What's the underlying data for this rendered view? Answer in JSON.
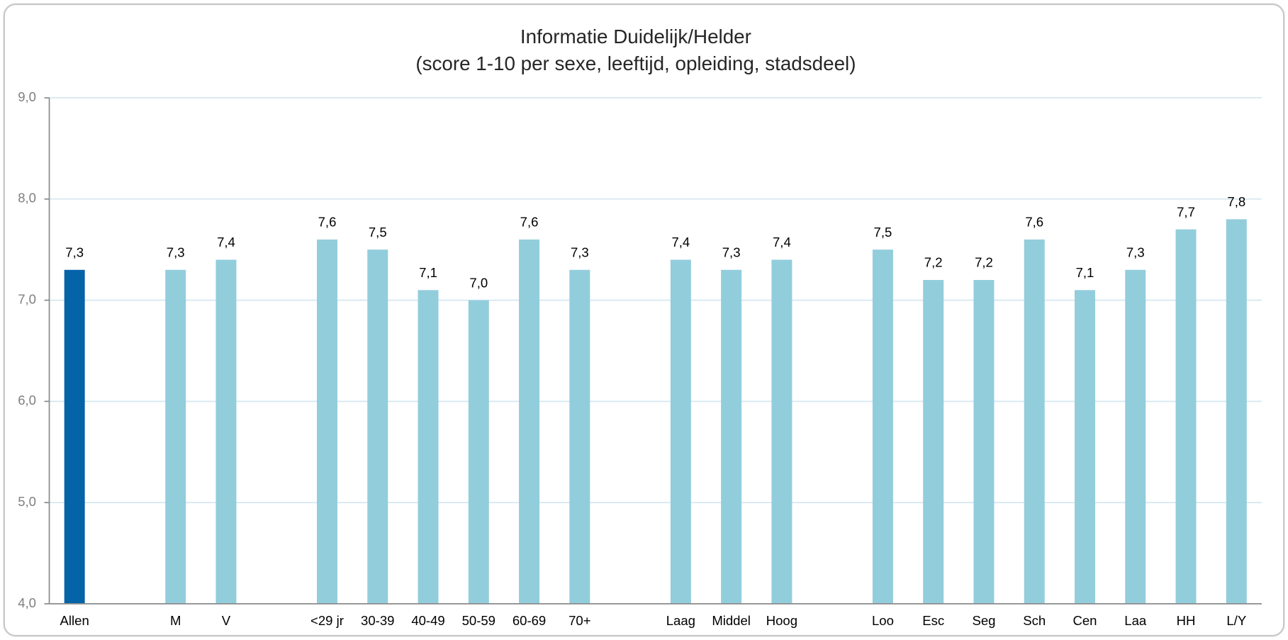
{
  "chart_data": {
    "type": "bar",
    "title": "Informatie Duidelijk/Helder",
    "subtitle": "(score 1-10 per sexe, leeftijd, opleiding, stadsdeel)",
    "categories": [
      "Allen",
      null,
      "M",
      "V",
      null,
      "<29 jr",
      "30-39",
      "40-49",
      "50-59",
      "60-69",
      "70+",
      null,
      "Laag",
      "Middel",
      "Hoog",
      null,
      "Loo",
      "Esc",
      "Seg",
      "Sch",
      "Cen",
      "Laa",
      "HH",
      "L/Y"
    ],
    "values": [
      7.3,
      null,
      7.3,
      7.4,
      null,
      7.6,
      7.5,
      7.1,
      7.0,
      7.6,
      7.3,
      null,
      7.4,
      7.3,
      7.4,
      null,
      7.5,
      7.2,
      7.2,
      7.6,
      7.1,
      7.3,
      7.7,
      7.8
    ],
    "value_labels": [
      "7,3",
      null,
      "7,3",
      "7,4",
      null,
      "7,6",
      "7,5",
      "7,1",
      "7,0",
      "7,6",
      "7,3",
      null,
      "7,4",
      "7,3",
      "7,4",
      null,
      "7,5",
      "7,2",
      "7,2",
      "7,6",
      "7,1",
      "7,3",
      "7,7",
      "7,8"
    ],
    "colors": [
      "#0563a8",
      null,
      "#92cddc",
      "#92cddc",
      null,
      "#92cddc",
      "#92cddc",
      "#92cddc",
      "#92cddc",
      "#92cddc",
      "#92cddc",
      null,
      "#92cddc",
      "#92cddc",
      "#92cddc",
      null,
      "#92cddc",
      "#92cddc",
      "#92cddc",
      "#92cddc",
      "#92cddc",
      "#92cddc",
      "#92cddc",
      "#92cddc"
    ],
    "ylim": [
      4,
      9
    ],
    "yticks": [
      {
        "value": 4,
        "label": "4,0"
      },
      {
        "value": 5,
        "label": "5,0"
      },
      {
        "value": 6,
        "label": "6,0"
      },
      {
        "value": 7,
        "label": "7,0"
      },
      {
        "value": 8,
        "label": "8,0"
      },
      {
        "value": 9,
        "label": "9,0"
      }
    ],
    "grid": true
  }
}
